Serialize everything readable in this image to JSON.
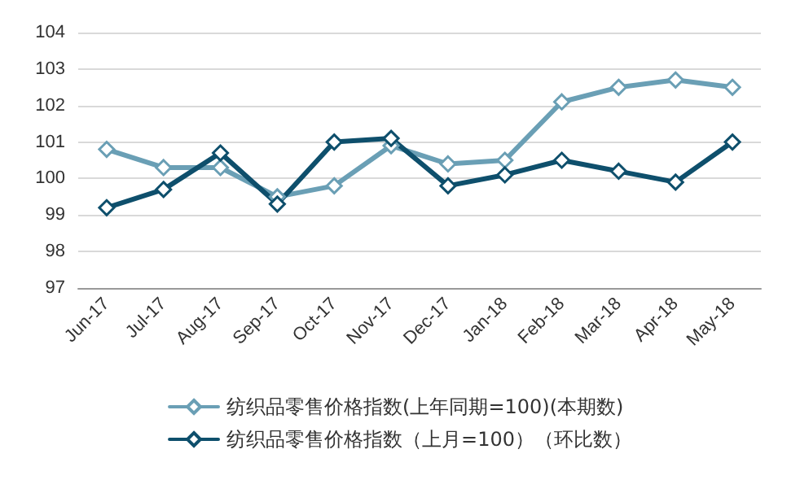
{
  "chart_data": {
    "type": "line",
    "categories": [
      "Jun-17",
      "Jul-17",
      "Aug-17",
      "Sep-17",
      "Oct-17",
      "Nov-17",
      "Dec-17",
      "Jan-18",
      "Feb-18",
      "Mar-18",
      "Apr-18",
      "May-18"
    ],
    "series": [
      {
        "name": "纺织品零售价格指数(上年同期=100)(本期数)",
        "color": "#6a9fb5",
        "values": [
          100.8,
          100.3,
          100.3,
          99.5,
          99.8,
          100.9,
          100.4,
          100.5,
          102.1,
          102.5,
          102.7,
          102.5
        ]
      },
      {
        "name": "纺织品零售价格指数（上月=100）（环比数）",
        "color": "#0e4f6c",
        "values": [
          99.2,
          99.7,
          100.7,
          99.3,
          101.0,
          101.1,
          99.8,
          100.1,
          100.5,
          100.2,
          99.9,
          101.0
        ]
      }
    ],
    "ylim": [
      97,
      104
    ],
    "yticks": [
      97,
      98,
      99,
      100,
      101,
      102,
      103,
      104
    ],
    "grid": "y",
    "legend": "bottom",
    "marker": "diamond",
    "line_style": "solid"
  }
}
